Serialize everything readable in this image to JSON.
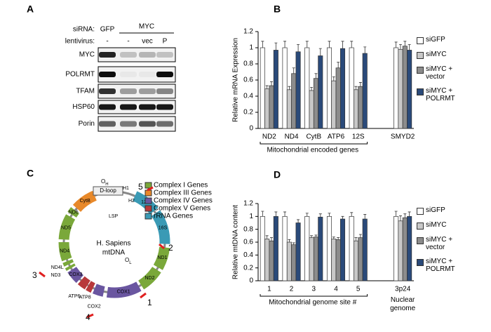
{
  "panel_labels": [
    "A",
    "B",
    "C",
    "D"
  ],
  "blot": {
    "siRNA_label": "siRNA:",
    "lentivirus_label": "lentivirus:",
    "siRNA": [
      "GFP",
      "MYC"
    ],
    "lentivirus": [
      "-",
      "-",
      "vec",
      "P"
    ],
    "rows": [
      "MYC",
      "POLRMT",
      "TFAM",
      "HSP60",
      "Porin"
    ]
  },
  "map": {
    "title": [
      "H. Sapiens",
      "mtDNA"
    ],
    "legend": [
      {
        "label": "Complex I Genes",
        "color": "#7aa83a"
      },
      {
        "label": "Complex III Genes",
        "color": "#e8892a"
      },
      {
        "label": "Complex IV Genes",
        "color": "#6a56a0"
      },
      {
        "label": "Complex V Genes",
        "color": "#b8383a"
      },
      {
        "label": "rRNA Genes",
        "color": "#3a9ab5"
      }
    ],
    "dloop": "D-loop",
    "genes": [
      {
        "name": "12S",
        "color": "#3a9ab5"
      },
      {
        "name": "16S",
        "color": "#3a9ab5"
      },
      {
        "name": "ND1",
        "color": "#7aa83a"
      },
      {
        "name": "ND2",
        "color": "#7aa83a"
      },
      {
        "name": "COX1",
        "color": "#6a56a0"
      },
      {
        "name": "COX2",
        "color": "#6a56a0"
      },
      {
        "name": "ATP8",
        "color": "#b8383a"
      },
      {
        "name": "ATP6",
        "color": "#b8383a"
      },
      {
        "name": "COX3",
        "color": "#6a56a0"
      },
      {
        "name": "ND3",
        "color": "#7aa83a"
      },
      {
        "name": "ND4L",
        "color": "#7aa83a"
      },
      {
        "name": "ND4",
        "color": "#7aa83a"
      },
      {
        "name": "ND5",
        "color": "#7aa83a"
      },
      {
        "name": "ND6",
        "color": "#7aa83a"
      },
      {
        "name": "CytB",
        "color": "#e8892a"
      }
    ],
    "promoters": [
      "H1",
      "H2",
      "LSP"
    ],
    "origins": [
      {
        "main": "O",
        "sub": "H"
      },
      {
        "main": "O",
        "sub": "L"
      }
    ],
    "sites": [
      "1",
      "2",
      "3",
      "4",
      "5"
    ]
  },
  "chart_data": [
    {
      "type": "bar",
      "ylabel": "Relative mRNA Expression",
      "group_label": "Mitochondrial encoded genes",
      "categories": [
        "ND2",
        "ND4",
        "CytB",
        "ATP6",
        "12S",
        null,
        "SMYD2"
      ],
      "ylim": [
        0,
        1.2
      ],
      "yticks": [
        0,
        0.2,
        0.4,
        0.6,
        0.8,
        1,
        1.2
      ],
      "series": [
        {
          "name": "siGFP",
          "color": "#ffffff",
          "values": [
            1.0,
            1.0,
            1.0,
            1.0,
            1.0,
            null,
            1.0
          ],
          "errors": [
            0.08,
            0.08,
            0.08,
            0.08,
            0.08,
            null,
            0.07
          ]
        },
        {
          "name": "siMYC",
          "color": "#c8c8c8",
          "values": [
            0.49,
            0.48,
            0.47,
            0.59,
            0.48,
            null,
            0.98
          ],
          "errors": [
            0.04,
            0.04,
            0.04,
            0.05,
            0.04,
            null,
            0.06
          ]
        },
        {
          "name": "siMYC + vector",
          "color": "#8c8c8c",
          "values": [
            0.53,
            0.68,
            0.62,
            0.75,
            0.52,
            null,
            1.02
          ],
          "errors": [
            0.05,
            0.07,
            0.06,
            0.07,
            0.05,
            null,
            0.06
          ]
        },
        {
          "name": "siMYC + POLRMT",
          "color": "#2a4a7a",
          "values": [
            0.97,
            0.95,
            0.9,
            0.99,
            0.93,
            null,
            0.97
          ],
          "errors": [
            0.09,
            0.09,
            0.09,
            0.09,
            0.08,
            null,
            0.07
          ]
        }
      ]
    },
    {
      "type": "bar",
      "ylabel": "Relative mtDNA content",
      "group_label": "Mitochondrial genome site #",
      "nuclear_label": "Nuclear genome",
      "categories": [
        "1",
        "2",
        "3",
        "4",
        "5",
        null,
        "3p24"
      ],
      "ylim": [
        0,
        1.2
      ],
      "yticks": [
        0,
        0.2,
        0.4,
        0.6,
        0.8,
        1,
        1.2
      ],
      "series": [
        {
          "name": "siGFP",
          "color": "#ffffff",
          "values": [
            1.0,
            1.0,
            1.0,
            1.0,
            1.0,
            null,
            1.0
          ],
          "errors": [
            0.08,
            0.07,
            0.05,
            0.05,
            0.06,
            null,
            0.08
          ]
        },
        {
          "name": "siMYC",
          "color": "#c8c8c8",
          "values": [
            0.65,
            0.6,
            0.67,
            0.65,
            0.62,
            null,
            0.93
          ],
          "errors": [
            0.05,
            0.04,
            0.03,
            0.03,
            0.05,
            null,
            0.08
          ]
        },
        {
          "name": "siMYC + vector",
          "color": "#8c8c8c",
          "values": [
            0.62,
            0.56,
            0.68,
            0.64,
            0.67,
            null,
            0.98
          ],
          "errors": [
            0.05,
            0.03,
            0.03,
            0.03,
            0.05,
            null,
            0.06
          ]
        },
        {
          "name": "siMYC + POLRMT",
          "color": "#2a4a7a",
          "values": [
            1.0,
            0.9,
            0.99,
            0.96,
            0.96,
            null,
            1.0
          ],
          "errors": [
            0.07,
            0.05,
            0.05,
            0.04,
            0.07,
            null,
            0.07
          ]
        }
      ]
    }
  ]
}
